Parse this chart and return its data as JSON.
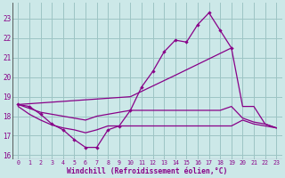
{
  "xlabel": "Windchill (Refroidissement éolien,°C)",
  "xlim": [
    -0.5,
    23.5
  ],
  "ylim": [
    15.8,
    23.8
  ],
  "xticks": [
    0,
    1,
    2,
    3,
    4,
    5,
    6,
    7,
    8,
    9,
    10,
    11,
    12,
    13,
    14,
    15,
    16,
    17,
    18,
    19,
    20,
    21,
    22,
    23
  ],
  "yticks": [
    16,
    17,
    18,
    19,
    20,
    21,
    22,
    23
  ],
  "bg_color": "#cce8e8",
  "grid_color": "#9dc4c4",
  "line_color": "#880088",
  "line1_x": [
    0,
    1,
    2,
    3,
    4,
    5,
    6,
    7,
    8,
    9,
    10,
    11,
    12,
    13,
    14,
    15,
    16,
    17,
    18,
    19
  ],
  "line1_y": [
    18.6,
    18.5,
    18.1,
    17.6,
    17.3,
    16.8,
    16.4,
    16.4,
    17.3,
    17.5,
    18.3,
    19.5,
    20.3,
    21.3,
    21.9,
    21.8,
    22.7,
    23.3,
    22.4,
    21.5
  ],
  "line2_x": [
    0,
    10,
    14,
    19,
    20,
    21,
    22,
    23
  ],
  "line2_y": [
    18.6,
    19.0,
    20.1,
    21.5,
    18.5,
    18.5,
    17.6,
    17.4
  ],
  "line3_x": [
    0,
    1,
    2,
    3,
    4,
    5,
    6,
    7,
    8,
    9,
    10,
    11,
    12,
    13,
    14,
    15,
    16,
    17,
    18,
    19,
    20,
    21,
    22,
    23
  ],
  "line3_y": [
    18.5,
    18.1,
    17.8,
    17.55,
    17.4,
    17.3,
    17.15,
    17.3,
    17.5,
    17.5,
    17.5,
    17.5,
    17.5,
    17.5,
    17.5,
    17.5,
    17.5,
    17.5,
    17.5,
    17.5,
    17.8,
    17.6,
    17.5,
    17.4
  ],
  "line4_x": [
    0,
    1,
    2,
    3,
    4,
    5,
    6,
    7,
    8,
    9,
    10,
    11,
    12,
    13,
    14,
    15,
    16,
    17,
    18,
    19,
    20,
    21,
    22,
    23
  ],
  "line4_y": [
    18.6,
    18.4,
    18.2,
    18.1,
    18.0,
    17.9,
    17.8,
    18.0,
    18.1,
    18.2,
    18.3,
    18.3,
    18.3,
    18.3,
    18.3,
    18.3,
    18.3,
    18.3,
    18.3,
    18.5,
    17.9,
    17.7,
    17.6,
    17.4
  ]
}
